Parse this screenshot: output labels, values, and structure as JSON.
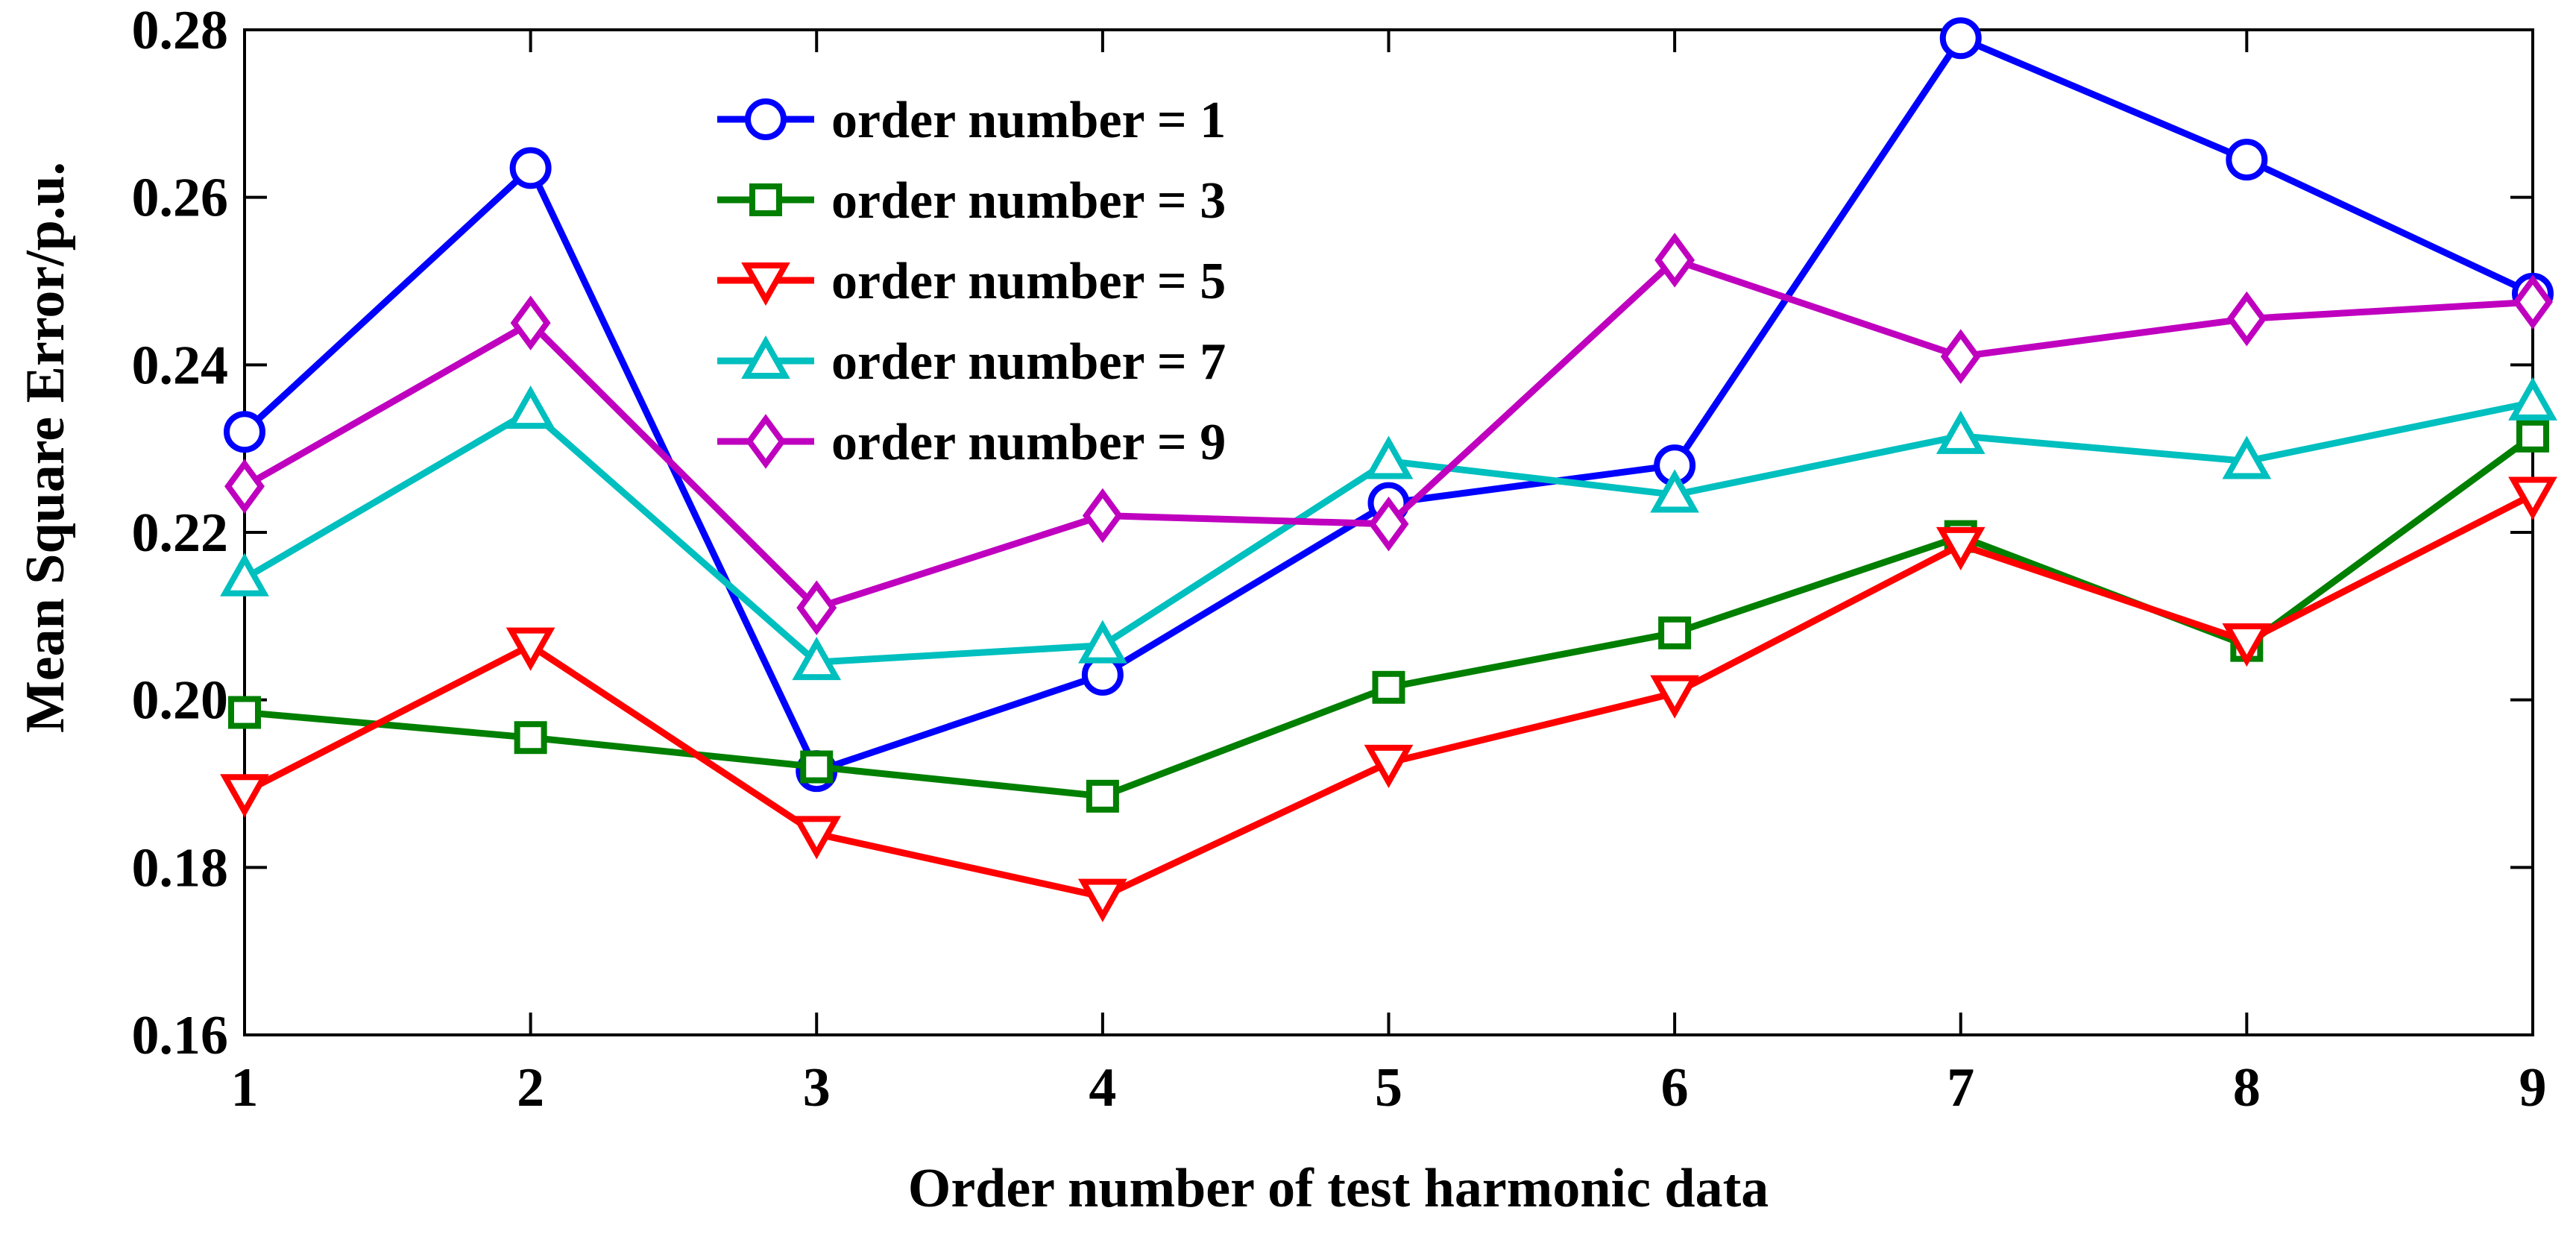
{
  "chart_data": {
    "type": "line",
    "title": "",
    "xlabel": "Order number of test harmonic data",
    "ylabel": "Mean Square Error/p.u.",
    "x": [
      1,
      2,
      3,
      4,
      5,
      6,
      7,
      8,
      9
    ],
    "xlim": [
      1,
      9
    ],
    "ylim": [
      0.16,
      0.28
    ],
    "xticks": [
      "1",
      "2",
      "3",
      "4",
      "5",
      "6",
      "7",
      "8",
      "9"
    ],
    "yticks": [
      "0.16",
      "0.18",
      "0.20",
      "0.22",
      "0.24",
      "0.26",
      "0.28"
    ],
    "grid": false,
    "legend_position": "top-center",
    "series": [
      {
        "name": "order number = 1",
        "color": "#0000ff",
        "marker": "circle",
        "values": [
          0.232,
          0.2635,
          0.1915,
          0.203,
          0.2235,
          0.228,
          0.279,
          0.2645,
          0.2485
        ]
      },
      {
        "name": "order number = 3",
        "color": "#007f00",
        "marker": "square",
        "values": [
          0.1985,
          0.1955,
          0.192,
          0.1885,
          0.2015,
          0.208,
          0.2195,
          0.2065,
          0.2315
        ]
      },
      {
        "name": "order number = 5",
        "color": "#ff0000",
        "marker": "triangle-down",
        "values": [
          0.189,
          0.2065,
          0.184,
          0.1765,
          0.1925,
          0.2008,
          0.2185,
          0.207,
          0.2245
        ]
      },
      {
        "name": "order number = 7",
        "color": "#00bfbf",
        "marker": "triangle-up",
        "values": [
          0.2145,
          0.2345,
          0.2045,
          0.2065,
          0.2285,
          0.2245,
          0.2315,
          0.2285,
          0.2355
        ]
      },
      {
        "name": "order number = 9",
        "color": "#bf00bf",
        "marker": "diamond",
        "values": [
          0.2255,
          0.245,
          0.211,
          0.222,
          0.221,
          0.2525,
          0.241,
          0.2455,
          0.2475
        ]
      }
    ]
  }
}
